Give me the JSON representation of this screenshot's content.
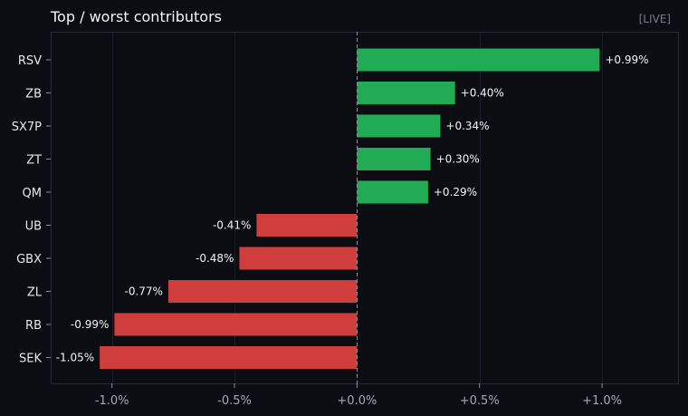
{
  "header": {
    "title": "Top / worst contributors",
    "badge": "[LIVE]"
  },
  "chart_data": {
    "type": "bar",
    "orientation": "horizontal",
    "title": "Top / worst contributors",
    "categories": [
      "RSV",
      "ZB",
      "SX7P",
      "ZT",
      "QM",
      "UB",
      "GBX",
      "ZL",
      "RB",
      "SEK"
    ],
    "values": [
      0.99,
      0.4,
      0.34,
      0.3,
      0.29,
      -0.41,
      -0.48,
      -0.77,
      -0.99,
      -1.05
    ],
    "value_labels": [
      "+0.99%",
      "+0.40%",
      "+0.34%",
      "+0.30%",
      "+0.29%",
      "-0.41%",
      "-0.48%",
      "-0.77%",
      "-0.99%",
      "-1.05%"
    ],
    "xlim": [
      -1.25,
      1.31
    ],
    "xticks": [
      -1.0,
      -0.5,
      0.0,
      0.5,
      1.0
    ],
    "xtick_labels": [
      "-1.0%",
      "-0.5%",
      "+0.0%",
      "+0.5%",
      "+1.0%"
    ],
    "xlabel": "",
    "ylabel": "",
    "grid": true,
    "colors": {
      "positive": "#22ab55",
      "negative": "#cf3d3d",
      "background": "#0b0d13",
      "plot_border": "#262b36",
      "grid": "#1a1e28",
      "zero_line": "#8c909a"
    }
  }
}
